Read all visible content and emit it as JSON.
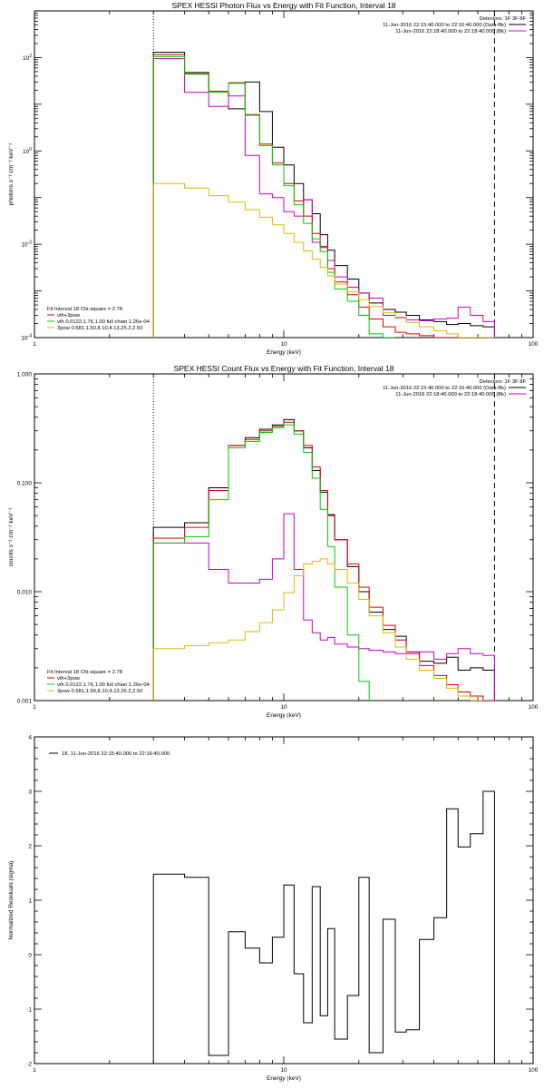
{
  "figure": {
    "colors": {
      "background": "#ffffff",
      "axes": "#000000"
    }
  },
  "chart_data": [
    {
      "type": "line",
      "id": "photon",
      "title": "SPEX HESSI Photon Flux vs Energy with Fit Function, Interval 18",
      "xlabel": "Energy (keV)",
      "ylabel": "photons s⁻¹ cm⁻² keV⁻¹",
      "xscale": "log",
      "yscale": "log",
      "xlim": [
        1,
        100
      ],
      "ylim": [
        0.0001,
        1000
      ],
      "xticks": [
        {
          "v": 1,
          "label": "1"
        },
        {
          "v": 10,
          "label": "10"
        },
        {
          "v": 100,
          "label": "100"
        }
      ],
      "yticks": [
        {
          "v": 0.0001,
          "b": "10",
          "e": "-4"
        },
        {
          "v": 0.01,
          "b": "10",
          "e": "-2"
        },
        {
          "v": 1,
          "b": "10",
          "e": "0"
        },
        {
          "v": 100,
          "b": "10",
          "e": "2"
        }
      ],
      "vlines": [
        {
          "x": 3,
          "style": "dotted",
          "color": "#000000"
        },
        {
          "x": 70,
          "style": "dashed",
          "color": "#000000"
        }
      ],
      "legend_tr": {
        "header": "Detectors: 1F 3F 8F",
        "entries": [
          {
            "text": "11-Jun-2016 22:15:40.000 to 22:16:40.000 (Data-Bk)",
            "color": "#000000"
          },
          {
            "text": "11-Jun-2016 22:18:40.000 to 22:18:40.000 (Bk)",
            "color": "#cc00cc"
          }
        ]
      },
      "legend_bl": [
        {
          "text": "Fit Interval 18   Chi-square = 2.78",
          "color": null
        },
        {
          "text": "vth+3pow",
          "color": "#dd0000"
        },
        {
          "text": "vth 0.0122,1.76,1.00  full chian 1.26e-04",
          "color": "#00cc00"
        },
        {
          "text": "3pow 0.581,1.50,8.10,4.13,25.2,2.50",
          "color": "#ddbb00"
        }
      ],
      "edges": [
        3,
        4,
        5,
        6,
        7,
        8,
        9,
        10,
        11,
        12,
        13,
        14,
        15,
        16,
        18,
        20,
        22,
        25,
        28,
        31,
        35,
        40,
        45,
        50,
        56,
        63,
        70
      ],
      "series": [
        {
          "name": "Data-Bk",
          "color": "#000000",
          "values": [
            130,
            48,
            19,
            8.0,
            30,
            7,
            1.2,
            0.5,
            0.2,
            0.09,
            0.045,
            0.016,
            0.0075,
            0.0035,
            0.0018,
            0.0009,
            0.00055,
            0.0004,
            0.00035,
            0.0003,
            0.00024,
            0.00022,
            0.00019,
            0.0002,
            0.00018,
            0.00017
          ]
        },
        {
          "name": "Bk",
          "color": "#cc00cc",
          "values": [
            95,
            18,
            9,
            15,
            0.8,
            0.12,
            0.1,
            0.05,
            0.04,
            0.09,
            0.011,
            0.009,
            0.0045,
            0.002,
            0.0012,
            0.0009,
            0.0007,
            0.0003,
            0.00027,
            0.00024,
            0.00023,
            0.00025,
            0.00026,
            0.00045,
            0.0003,
            0.00022
          ]
        },
        {
          "name": "vth+3pow",
          "color": "#dd0000",
          "values": [
            115,
            45,
            19,
            29,
            6,
            1.4,
            0.55,
            0.2,
            0.085,
            0.04,
            0.017,
            0.0085,
            0.003,
            0.00155,
            0.00083,
            0.00045,
            0.00025,
            0.00017,
            0.00013,
            0.00012,
            0.00011,
            0.0001,
            0.0001,
            0.0001,
            0.0001,
            0.0001
          ]
        },
        {
          "name": "vth",
          "color": "#00cc00",
          "values": [
            105,
            44,
            18,
            28,
            5.8,
            1.3,
            0.5,
            0.18,
            0.07,
            0.028,
            0.013,
            0.007,
            0.0025,
            0.0011,
            0.0006,
            0.0003,
            0.00012,
            0.0001
          ]
        },
        {
          "name": "3pow",
          "color": "#ddbb00",
          "values": [
            0.2,
            0.16,
            0.11,
            0.08,
            0.055,
            0.038,
            0.026,
            0.017,
            0.011,
            0.0072,
            0.0048,
            0.0032,
            0.0021,
            0.0014,
            0.00095,
            0.00065,
            0.00046,
            0.00034,
            0.00026,
            0.00021,
            0.00017,
            0.00014,
            0.00012,
            0.0001,
            0.0001,
            0.0001
          ]
        }
      ]
    },
    {
      "type": "line",
      "id": "count",
      "title": "SPEX HESSI Count Flux vs Energy with Fit Function, Interval 18",
      "xlabel": "Energy (keV)",
      "ylabel": "counts s⁻¹ cm⁻² keV⁻¹",
      "xscale": "log",
      "yscale": "log",
      "xlim": [
        1,
        100
      ],
      "ylim": [
        0.001,
        1.0
      ],
      "xticks": [
        {
          "v": 1,
          "label": "1"
        },
        {
          "v": 10,
          "label": "10"
        },
        {
          "v": 100,
          "label": "100"
        }
      ],
      "yticks": [
        {
          "v": 0.001,
          "b": "0.001",
          "e": ""
        },
        {
          "v": 0.01,
          "b": "0.010",
          "e": ""
        },
        {
          "v": 0.1,
          "b": "0.100",
          "e": ""
        },
        {
          "v": 1.0,
          "b": "1.000",
          "e": ""
        }
      ],
      "vlines": [
        {
          "x": 3,
          "style": "dotted",
          "color": "#000000"
        },
        {
          "x": 70,
          "style": "dashed",
          "color": "#000000"
        }
      ],
      "legend_tr": {
        "header": "Detectors: 1F 3F 8F",
        "entries": [
          {
            "text": "11-Jun-2016 22:15:40.000 to 22:16:40.000 (Data-Bk)",
            "color": "#000000"
          },
          {
            "text": "11-Jun-2016 22:18:40.000 to 22:18:40.000 (Bk)",
            "color": "#cc00cc"
          }
        ]
      },
      "legend_bl": [
        {
          "text": "Fit Interval 18   Chi-square = 2.78",
          "color": null
        },
        {
          "text": "vth+3pow",
          "color": "#dd0000"
        },
        {
          "text": "vth 0.0122,1.76,1.00  full chian 1.26e-04",
          "color": "#00cc00"
        },
        {
          "text": "3pow 0.581,1.50,8.10,4.13,25.2,2.50",
          "color": "#ddbb00"
        }
      ],
      "edges": [
        3,
        4,
        5,
        6,
        7,
        8,
        9,
        10,
        11,
        12,
        13,
        14,
        15,
        16,
        18,
        20,
        22,
        25,
        28,
        31,
        35,
        40,
        45,
        50,
        56,
        63,
        70
      ],
      "series": [
        {
          "name": "Data-Bk",
          "color": "#000000",
          "values": [
            0.039,
            0.043,
            0.09,
            0.22,
            0.26,
            0.31,
            0.34,
            0.38,
            0.3,
            0.21,
            0.13,
            0.082,
            0.051,
            0.03,
            0.017,
            0.01,
            0.0065,
            0.0045,
            0.0039,
            0.0028,
            0.0023,
            0.0022,
            0.0025,
            0.0019,
            0.002,
            0.0019
          ]
        },
        {
          "name": "Bk",
          "color": "#cc00cc",
          "values": [
            0.028,
            0.028,
            0.016,
            0.012,
            0.012,
            0.013,
            0.02,
            0.052,
            0.016,
            0.0055,
            0.0042,
            0.0036,
            0.0038,
            0.0033,
            0.0031,
            0.003,
            0.0029,
            0.0028,
            0.0027,
            0.0028,
            0.0028,
            0.0024,
            0.0027,
            0.003,
            0.0027,
            0.0026
          ]
        },
        {
          "name": "vth+3pow",
          "color": "#dd0000",
          "values": [
            0.031,
            0.039,
            0.085,
            0.22,
            0.25,
            0.3,
            0.33,
            0.36,
            0.3,
            0.22,
            0.14,
            0.085,
            0.05,
            0.03,
            0.018,
            0.011,
            0.0072,
            0.0049,
            0.0036,
            0.0027,
            0.0021,
            0.0017,
            0.0014,
            0.0012,
            0.0011,
            0.001
          ]
        },
        {
          "name": "vth",
          "color": "#00cc00",
          "values": [
            0.028,
            0.032,
            0.07,
            0.21,
            0.24,
            0.29,
            0.32,
            0.34,
            0.28,
            0.19,
            0.11,
            0.057,
            0.026,
            0.011,
            0.004,
            0.0015
          ]
        },
        {
          "name": "3pow",
          "color": "#ddbb00",
          "values": [
            0.003,
            0.0032,
            0.0034,
            0.0036,
            0.0043,
            0.0052,
            0.0068,
            0.0098,
            0.014,
            0.018,
            0.019,
            0.02,
            0.018,
            0.016,
            0.012,
            0.0085,
            0.006,
            0.0042,
            0.0031,
            0.0024,
            0.0019,
            0.0016,
            0.0013,
            0.0011,
            0.001
          ]
        }
      ]
    },
    {
      "type": "line",
      "id": "resid",
      "title": "",
      "xlabel": "Energy (keV)",
      "ylabel": "Normalized Residuals (sigma)",
      "xscale": "log",
      "yscale": "linear",
      "xlim": [
        1,
        100
      ],
      "ylim": [
        -2,
        4
      ],
      "xticks": [
        {
          "v": 1,
          "label": "1"
        },
        {
          "v": 10,
          "label": "10"
        },
        {
          "v": 100,
          "label": "100"
        }
      ],
      "yticks": [
        {
          "v": -2,
          "b": "-2",
          "e": ""
        },
        {
          "v": -1,
          "b": "-1",
          "e": ""
        },
        {
          "v": 0,
          "b": "0",
          "e": ""
        },
        {
          "v": 1,
          "b": "1",
          "e": ""
        },
        {
          "v": 2,
          "b": "2",
          "e": ""
        },
        {
          "v": 3,
          "b": "3",
          "e": ""
        },
        {
          "v": 4,
          "b": "4",
          "e": ""
        }
      ],
      "vlines": [],
      "legend_tr": null,
      "legend_bl": [],
      "legend_tl": [
        {
          "text": "18, 11-Jun-2016 22:15:40.000 to 22:16:40.000",
          "color": "#000000"
        }
      ],
      "edges": [
        3,
        4,
        5,
        6,
        7,
        8,
        9,
        10,
        11,
        12,
        13,
        14,
        15,
        16,
        18,
        20,
        22,
        25,
        28,
        31,
        35,
        40,
        45,
        50,
        56,
        63,
        70
      ],
      "series": [
        {
          "name": "18, 11-Jun-2016 22:15:40.000 to 22:16:40.000",
          "color": "#000000",
          "values": [
            1.48,
            1.42,
            -1.85,
            0.42,
            0.12,
            -0.15,
            0.32,
            1.28,
            -0.35,
            -1.25,
            1.25,
            -1.12,
            0.48,
            -1.55,
            -0.75,
            1.42,
            -1.8,
            0.65,
            -1.42,
            -1.38,
            0.28,
            0.68,
            2.68,
            1.98,
            2.22,
            3.0
          ]
        }
      ]
    }
  ]
}
